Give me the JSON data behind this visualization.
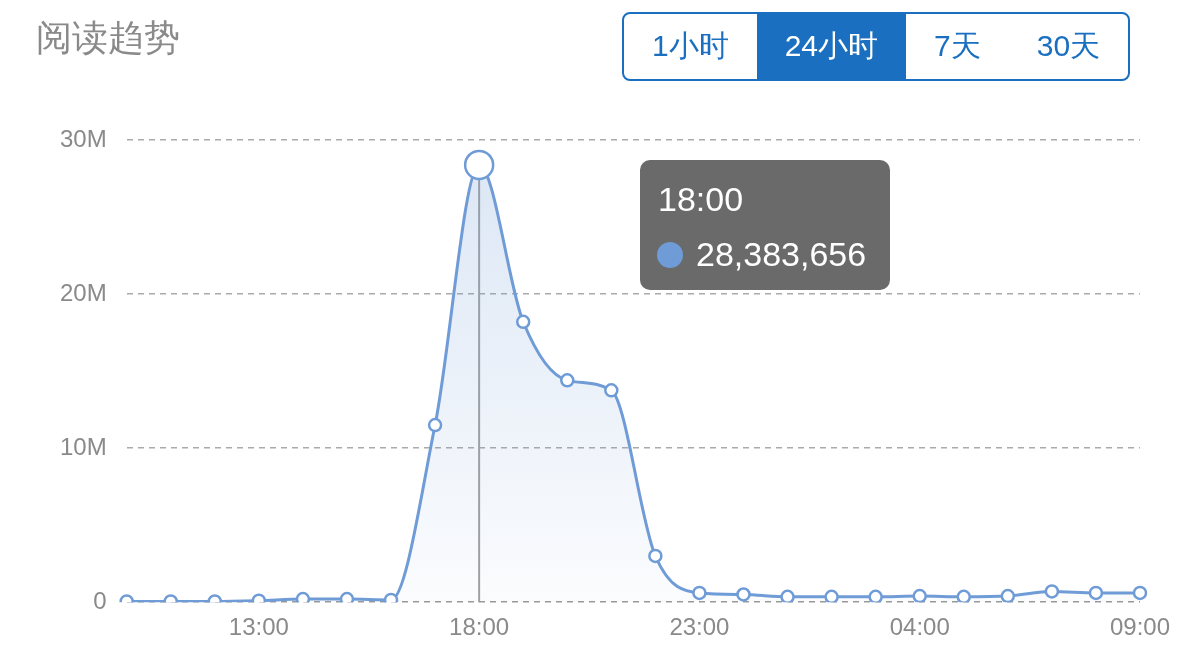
{
  "chart_data": {
    "type": "area",
    "title": "阅读趋势",
    "categories": [
      null,
      null,
      null,
      "13:00",
      null,
      null,
      null,
      null,
      "18:00",
      null,
      null,
      null,
      null,
      "23:00",
      null,
      null,
      null,
      null,
      "04:00",
      null,
      null,
      null,
      null,
      "09:00"
    ],
    "series": [
      {
        "color": "#6f9bd6",
        "values": [
          0.05,
          0.05,
          0.05,
          0.1,
          0.2,
          0.2,
          0.15,
          11.5,
          28.383656,
          18.2,
          14.4,
          13.75,
          3.0,
          0.6,
          0.5,
          0.35,
          0.35,
          0.35,
          0.4,
          0.35,
          0.4,
          0.7,
          0.6,
          0.6
        ]
      }
    ],
    "ylim": [
      0,
      30
    ],
    "yticks": [
      0,
      {
        "value": 10,
        "label": "10M"
      },
      {
        "value": 20,
        "label": "20M"
      },
      {
        "value": 30,
        "label": "30M"
      }
    ],
    "grid": "y",
    "legend": false,
    "marker": "circle",
    "line_style": "solid",
    "ref_lines": [
      {
        "axis": "x",
        "value": "18:00",
        "color": "#a0a0a0"
      }
    ],
    "annotations": [
      "1小时",
      "24小时",
      "7天",
      "30天",
      "18:00",
      "28,383,656"
    ]
  }
}
